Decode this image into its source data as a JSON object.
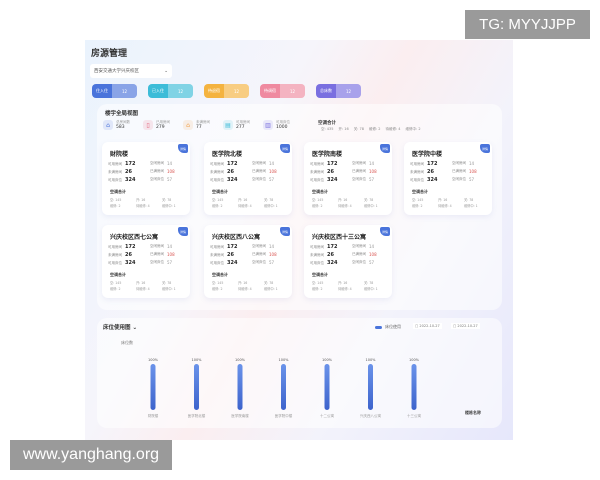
{
  "watermarks": {
    "top": "TG: MYYJJPP",
    "bottom": "www.yanghang.org"
  },
  "title": "房源管理",
  "dropdown": "西安交通大学兴庆校区",
  "pills": [
    {
      "a": "住入住",
      "b": "12",
      "color": "#4a74db"
    },
    {
      "a": "已入住",
      "b": "12",
      "color": "#3cbcd8"
    },
    {
      "a": "待退宿",
      "b": "12",
      "color": "#f4b340"
    },
    {
      "a": "待调宿",
      "b": "12",
      "color": "#ef8aa0"
    },
    {
      "a": "总床数",
      "b": "12",
      "color": "#7a6fe0"
    }
  ],
  "overview": {
    "title": "楼宇全局视图",
    "stats": [
      {
        "label": "总房间数",
        "value": "583",
        "icon": "home-icon",
        "color": "#4a74db"
      },
      {
        "label": "已用房间",
        "value": "279",
        "icon": "door-icon",
        "color": "#e3607a"
      },
      {
        "label": "未满房间",
        "value": "77",
        "icon": "house-icon",
        "color": "#f2a04a"
      },
      {
        "label": "可用房间",
        "value": "277",
        "icon": "bed-icon",
        "color": "#3cbcd8"
      },
      {
        "label": "可用床位",
        "value": "1000",
        "icon": "chart-icon",
        "color": "#7a6fe0"
      }
    ],
    "ac_total": "空调合计",
    "ac_items": [
      "空: 435",
      "开: 16",
      "关: 78",
      "维修: 2",
      "待维修: 4",
      "维修中: 2"
    ]
  },
  "card_labels": {
    "tag": "详情",
    "l1": "可用房间",
    "l2": "未满房间",
    "l3": "可用床位",
    "r1": "空闲房间",
    "r2": "已满房间",
    "r3": "空闲床位",
    "ac": "空调合计",
    "ac_items": [
      "空: 145",
      "开: 16",
      "关: 78",
      "维修: 2",
      "待维修: 4",
      "维修中: 1"
    ]
  },
  "cards": [
    {
      "name": "财院楼",
      "v": [
        "172",
        "26",
        "324",
        "14",
        "108",
        "57"
      ]
    },
    {
      "name": "医学院北楼",
      "v": [
        "172",
        "26",
        "324",
        "14",
        "108",
        "57"
      ]
    },
    {
      "name": "医学院南楼",
      "v": [
        "172",
        "26",
        "324",
        "14",
        "108",
        "57"
      ]
    },
    {
      "name": "医学院中楼",
      "v": [
        "172",
        "26",
        "324",
        "14",
        "108",
        "57"
      ]
    },
    {
      "name": "兴庆校区西七公寓",
      "v": [
        "172",
        "26",
        "324",
        "14",
        "108",
        "57"
      ]
    },
    {
      "name": "兴庆校区西八公寓",
      "v": [
        "172",
        "26",
        "324",
        "14",
        "108",
        "57"
      ]
    },
    {
      "name": "兴庆校区西十三公寓",
      "v": [
        "172",
        "26",
        "324",
        "14",
        "108",
        "57"
      ]
    }
  ],
  "bed_chart": {
    "title": "床位使用图",
    "legend": "床位使用",
    "date_from": "2022-10-27",
    "date_to": "2022-10-27",
    "more": "楼栋名称"
  },
  "chart_data": {
    "type": "bar",
    "ylabel": "床位数",
    "categories": [
      "财院楼",
      "医学院北楼",
      "医学院南楼",
      "医学院中楼",
      "十二公寓",
      "兴庆西八公寓",
      "十三公寓"
    ],
    "values": [
      100,
      100,
      100,
      100,
      100,
      100,
      100
    ],
    "data_labels": [
      "100%",
      "100%",
      "100%",
      "100%",
      "100%",
      "100%",
      "100%"
    ],
    "ylim": [
      0,
      100
    ],
    "color": "#4a74db"
  }
}
